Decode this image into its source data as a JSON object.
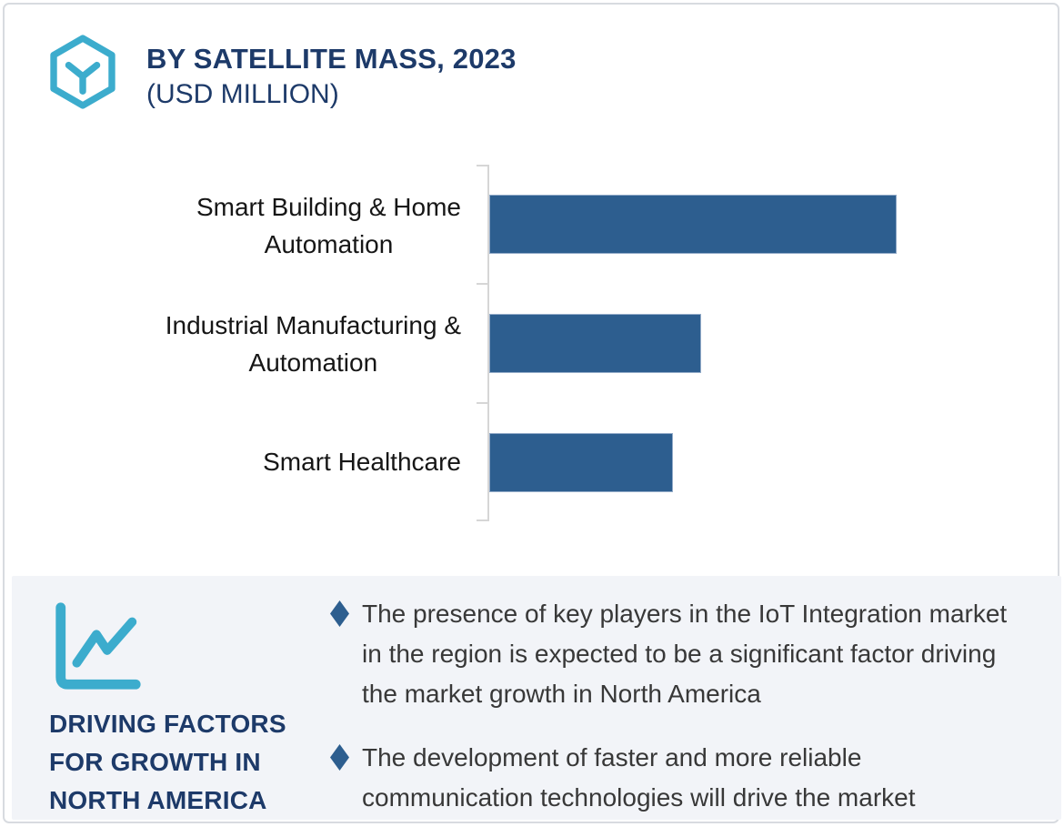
{
  "header": {
    "title_line1": "BY SATELLITE MASS, 2023",
    "title_line2": "(USD MILLION)",
    "icon": "hexagon-box-icon"
  },
  "chart_data": {
    "type": "bar",
    "orientation": "horizontal",
    "title": "BY SATELLITE MASS, 2023",
    "subtitle": "(USD MILLION)",
    "categories": [
      "Smart Building & Home Automation",
      "Industrial Manufacturing & Automation",
      "Smart Healthcare"
    ],
    "categories_display": [
      "Smart Building & Home\nAutomation",
      "Industrial Manufacturing &\nAutomation",
      "Smart Healthcare"
    ],
    "values_relative_pct_of_max": [
      100,
      52,
      45
    ],
    "axis_scale_relative_max": 141,
    "value_axis_labels_shown": false,
    "data_labels_shown": false,
    "gridlines": false,
    "legend_position": "none",
    "xlabel": "",
    "ylabel": "",
    "bar_color": "#2d5e8f",
    "axis_line_color": "#d6d6d6"
  },
  "panel": {
    "icon": "line-chart-icon",
    "title": "DRIVING FACTORS\nFOR GROWTH IN\nNORTH AMERICA",
    "bullets": [
      "The presence of key players in the IoT Integration market in the region is expected to be a significant factor driving the market growth in North America",
      "The development of faster and more reliable communication technologies will drive the market"
    ]
  },
  "colors": {
    "accent_teal": "#3caccd",
    "navy": "#1d3a69",
    "bar_blue": "#2d5e8f",
    "panel_bg": "#f2f4f8",
    "text_dark": "#383838",
    "card_border": "#d8dbe0"
  }
}
